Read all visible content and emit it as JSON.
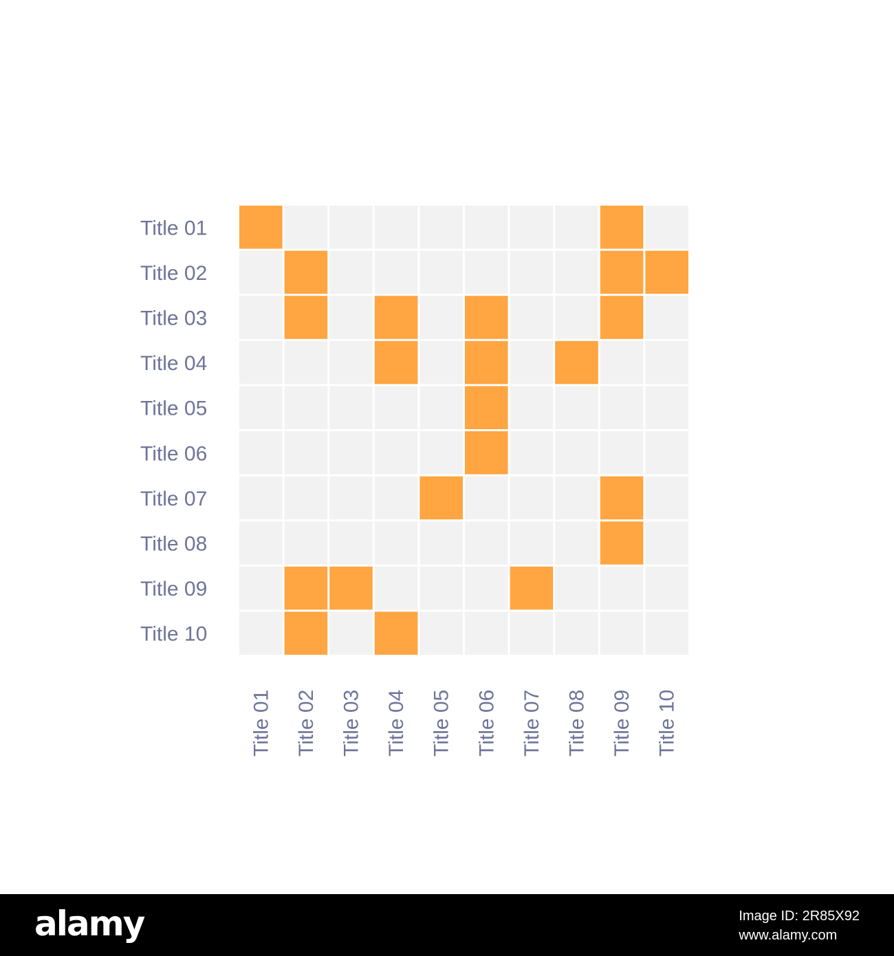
{
  "chart_data": {
    "type": "heatmap",
    "rows": [
      "Title 01",
      "Title 02",
      "Title 03",
      "Title 04",
      "Title 05",
      "Title 06",
      "Title 07",
      "Title 08",
      "Title 09",
      "Title 10"
    ],
    "columns": [
      "Title 01",
      "Title 02",
      "Title 03",
      "Title 04",
      "Title 05",
      "Title 06",
      "Title 07",
      "Title 08",
      "Title 09",
      "Title 10"
    ],
    "values": [
      [
        1,
        0,
        0,
        0,
        0,
        0,
        0,
        0,
        1,
        0
      ],
      [
        0,
        1,
        0,
        0,
        0,
        0,
        0,
        0,
        1,
        1
      ],
      [
        0,
        1,
        0,
        1,
        0,
        1,
        0,
        0,
        1,
        0
      ],
      [
        0,
        0,
        0,
        1,
        0,
        1,
        0,
        1,
        0,
        0
      ],
      [
        0,
        0,
        0,
        0,
        0,
        1,
        0,
        0,
        0,
        0
      ],
      [
        0,
        0,
        0,
        0,
        0,
        1,
        0,
        0,
        0,
        0
      ],
      [
        0,
        0,
        0,
        0,
        1,
        0,
        0,
        0,
        1,
        0
      ],
      [
        0,
        0,
        0,
        0,
        0,
        0,
        0,
        0,
        1,
        0
      ],
      [
        0,
        1,
        1,
        0,
        0,
        0,
        1,
        0,
        0,
        0
      ],
      [
        0,
        1,
        0,
        1,
        0,
        0,
        0,
        0,
        0,
        0
      ]
    ],
    "colors": {
      "on": "#FFA541",
      "off": "#F2F2F2",
      "grid": "#FFFFFF",
      "label": "#6E7499"
    },
    "title": "",
    "xlabel": "",
    "ylabel": "",
    "legend": "none"
  },
  "footer": {
    "brand": "alamy",
    "image_id": "Image ID: 2R85X92",
    "site": "www.alamy.com"
  }
}
